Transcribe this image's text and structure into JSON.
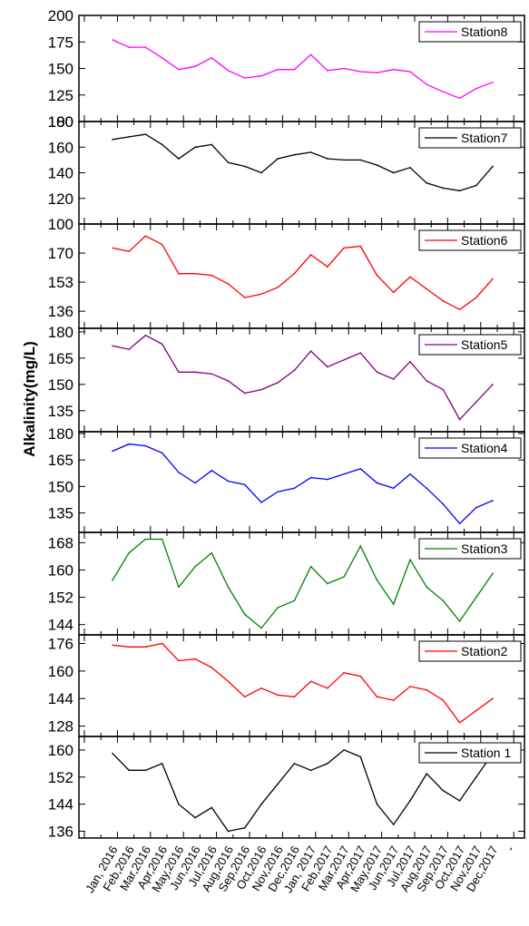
{
  "chart_data": {
    "type": "line",
    "ylabel": "Alkalinity(mg/L)",
    "categories": [
      "Jan, 2016",
      "Feb,2016",
      "Mar,2016",
      "Apr,2016",
      "May,2016",
      "Jun,2016",
      "Jul,2016",
      "Aug,2016",
      "Sep,2016",
      "Oct,2016",
      "Nov,2016",
      "Dec,2016",
      "Jan, 2017",
      "Feb,2017",
      "Mar,2017",
      "Apr,2017",
      "May,2017",
      "Jun,2017",
      "Jul,2017",
      "Aug,2017",
      "Sep,2017",
      "Oct,2017",
      "Nov,2017",
      "Dec,2017"
    ],
    "extra_x_tick": "-",
    "panels": [
      {
        "name": "Station8",
        "color": "#ff00ff",
        "ylim": [
          100,
          200
        ],
        "yticks": [
          "200",
          "175",
          "150",
          "125",
          "100"
        ],
        "values": [
          177,
          170,
          170,
          160,
          149,
          152,
          160,
          148,
          141,
          143,
          149,
          149,
          163,
          148,
          150,
          147,
          146,
          149,
          147,
          135,
          128,
          122,
          131,
          137
        ]
      },
      {
        "name": "Station7",
        "color": "#000000",
        "ylim": [
          100,
          180
        ],
        "yticks": [
          "180",
          "160",
          "140",
          "120",
          "100"
        ],
        "values": [
          166,
          168,
          170,
          162,
          151,
          160,
          162,
          148,
          145,
          140,
          151,
          154,
          156,
          151,
          150,
          150,
          146,
          140,
          144,
          132,
          128,
          126,
          130,
          145
        ]
      },
      {
        "name": "Station6",
        "color": "#ff0000",
        "ylim": [
          126,
          187
        ],
        "yticks": [
          "170",
          "153",
          "136"
        ],
        "values": [
          173,
          171,
          180,
          175,
          158,
          158,
          157,
          152,
          144,
          146,
          150,
          158,
          169,
          162,
          173,
          174,
          157,
          147,
          156,
          149,
          142,
          137,
          144,
          155
        ]
      },
      {
        "name": "Station5",
        "color": "#800080",
        "ylim": [
          123,
          182
        ],
        "yticks": [
          "180",
          "165",
          "150",
          "135"
        ],
        "values": [
          172,
          170,
          178,
          173,
          157,
          157,
          156,
          152,
          145,
          147,
          151,
          158,
          169,
          160,
          164,
          168,
          157,
          153,
          163,
          152,
          147,
          130,
          140,
          150
        ]
      },
      {
        "name": "Station4",
        "color": "#0000ff",
        "ylim": [
          124,
          181
        ],
        "yticks": [
          "180",
          "165",
          "150",
          "135"
        ],
        "values": [
          170,
          174,
          173,
          169,
          158,
          152,
          159,
          153,
          151,
          141,
          147,
          149,
          155,
          154,
          157,
          160,
          152,
          149,
          157,
          149,
          140,
          129,
          138,
          142
        ]
      },
      {
        "name": "Station3",
        "color": "#008000",
        "ylim": [
          141,
          171
        ],
        "yticks": [
          "168",
          "160",
          "152",
          "144"
        ],
        "values": [
          157,
          165,
          169,
          169,
          155,
          161,
          165,
          155,
          147,
          143,
          149,
          151,
          161,
          156,
          158,
          167,
          157,
          150,
          163,
          155,
          151,
          145,
          152,
          159
        ]
      },
      {
        "name": "Station2",
        "color": "#ff0000",
        "ylim": [
          122,
          181
        ],
        "yticks": [
          "176",
          "160",
          "144",
          "128"
        ],
        "values": [
          175,
          174,
          174,
          176,
          166,
          167,
          162,
          154,
          145,
          150,
          146,
          145,
          154,
          150,
          159,
          157,
          145,
          143,
          151,
          149,
          143,
          130,
          137,
          144
        ]
      },
      {
        "name": "Station 1",
        "color": "#000000",
        "ylim": [
          134,
          164
        ],
        "yticks": [
          "160",
          "152",
          "144",
          "136"
        ],
        "values": [
          159,
          154,
          154,
          156,
          144,
          140,
          143,
          136,
          137,
          144,
          150,
          156,
          154,
          156,
          160,
          158,
          144,
          138,
          145,
          153,
          148,
          145,
          152,
          159
        ]
      }
    ]
  }
}
